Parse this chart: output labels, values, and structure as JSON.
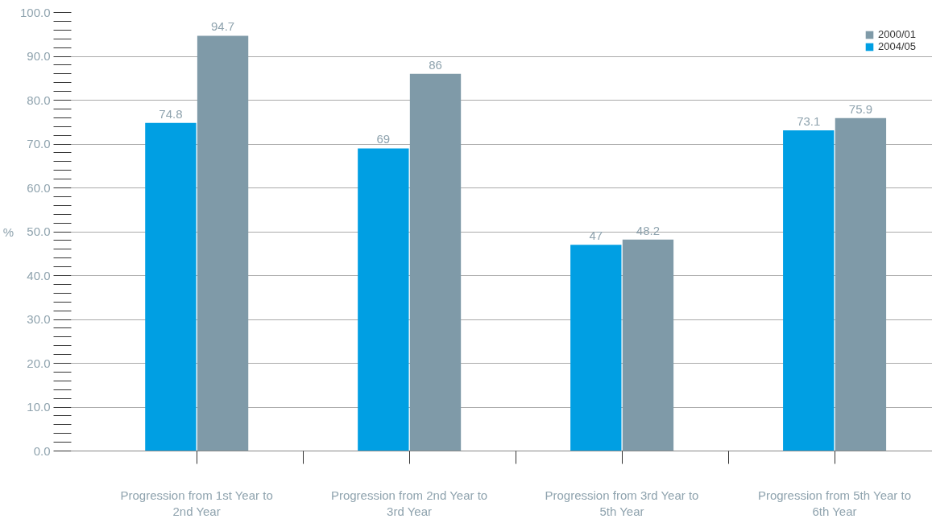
{
  "chart_data": {
    "type": "bar",
    "ylabel": "%",
    "categories": [
      "Progression from 1st Year to 2nd Year",
      "Progression from 2nd Year to 3rd Year",
      "Progression from 3rd Year to 5th Year",
      "Progression from 5th Year to 6th Year"
    ],
    "series": [
      {
        "name": "2004/05",
        "color": "#009fe3",
        "values": [
          74.8,
          69,
          47,
          73.1
        ]
      },
      {
        "name": "2000/01",
        "color": "#7f9aa8",
        "values": [
          94.7,
          86,
          48.2,
          75.9
        ]
      }
    ],
    "ylim": [
      0,
      100
    ],
    "yticks": [
      {
        "value": 0,
        "label": "0.0"
      },
      {
        "value": 10,
        "label": "10.0"
      },
      {
        "value": 20,
        "label": "20.0"
      },
      {
        "value": 30,
        "label": "30.0"
      },
      {
        "value": 40,
        "label": "40.0"
      },
      {
        "value": 50,
        "label": "50.0"
      },
      {
        "value": 60,
        "label": "60.0"
      },
      {
        "value": 70,
        "label": "70.0"
      },
      {
        "value": 80,
        "label": "80.0"
      },
      {
        "value": 90,
        "label": "90.0"
      },
      {
        "value": 100,
        "label": "100.0"
      }
    ],
    "grid": "y",
    "legend": "top right",
    "data_labels": true
  }
}
